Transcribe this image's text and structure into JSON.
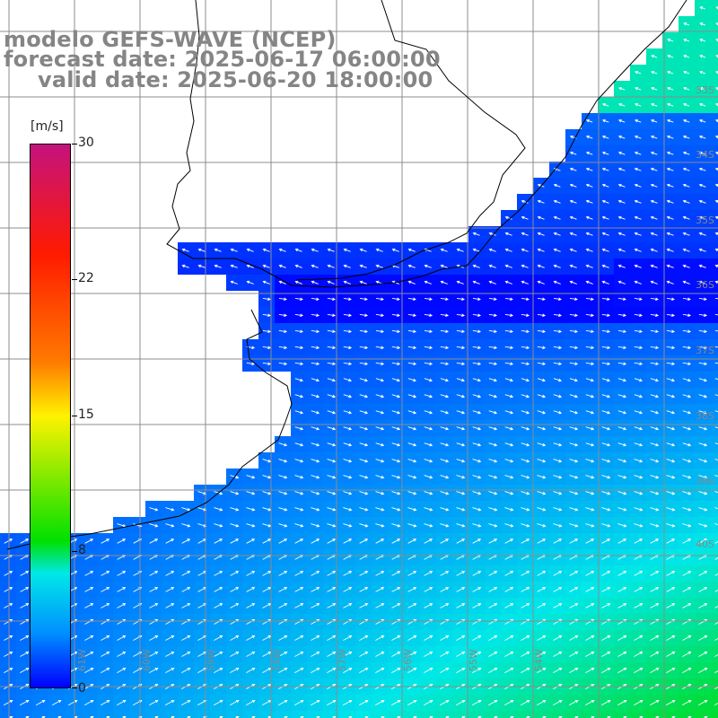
{
  "header": {
    "model": "modelo GEFS-WAVE (NCEP)",
    "forecast": "forecast date: 2025-06-17 06:00:00",
    "valid": "valid date: 2025-06-20 18:00:00"
  },
  "colorbar": {
    "unit": "[m/s]",
    "ticks": [
      "30",
      "22",
      "15",
      "8",
      "0"
    ],
    "colors": [
      "#c4127e",
      "#ff1a00",
      "#ff7a00",
      "#fff200",
      "#00e000",
      "#00e8e8",
      "#0090ff",
      "#0000ff"
    ]
  },
  "grid_labels": {
    "lat": [
      "33S",
      "34S",
      "35S",
      "36S",
      "37S",
      "38S",
      "39S",
      "40S"
    ],
    "lon": [
      "61W",
      "60W",
      "59W",
      "58W",
      "57W",
      "56W",
      "55W",
      "54W"
    ]
  }
}
